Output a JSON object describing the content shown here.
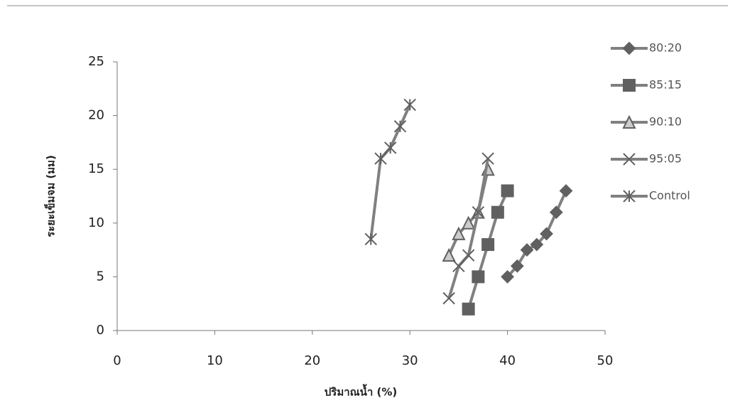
{
  "chart_data": {
    "type": "line",
    "x_label": "ปริมาณน้ำ (%)",
    "y_label": "ระยะเข็มจม (มม)",
    "xlim": [
      0,
      50
    ],
    "xticks": [
      0,
      10,
      20,
      30,
      40,
      50
    ],
    "ylim": [
      0,
      25
    ],
    "yticks": [
      0,
      5,
      10,
      15,
      20,
      25
    ],
    "grid": false,
    "legend": "right",
    "series": [
      {
        "name": "80:20",
        "color": "#808080",
        "marker": "diamond",
        "x": [
          40,
          41,
          42,
          43,
          44,
          45,
          46
        ],
        "values": [
          5,
          6,
          7.5,
          8,
          9,
          11,
          13
        ]
      },
      {
        "name": "85:15",
        "color": "#808080",
        "marker": "square",
        "x": [
          36,
          37,
          38,
          39,
          40
        ],
        "values": [
          2,
          5,
          8,
          11,
          13
        ]
      },
      {
        "name": "90:10",
        "color": "#808080",
        "marker": "triangle",
        "x": [
          34,
          35,
          36,
          37,
          38
        ],
        "values": [
          7,
          9,
          10,
          11,
          15
        ]
      },
      {
        "name": "95:05",
        "color": "#808080",
        "marker": "x",
        "x": [
          34,
          35,
          36,
          37,
          38
        ],
        "values": [
          3,
          6,
          7,
          11,
          16
        ]
      },
      {
        "name": "Control",
        "color": "#808080",
        "marker": "star",
        "x": [
          26,
          27,
          28,
          29,
          30
        ],
        "values": [
          8.5,
          16,
          17,
          19,
          21
        ]
      }
    ]
  }
}
